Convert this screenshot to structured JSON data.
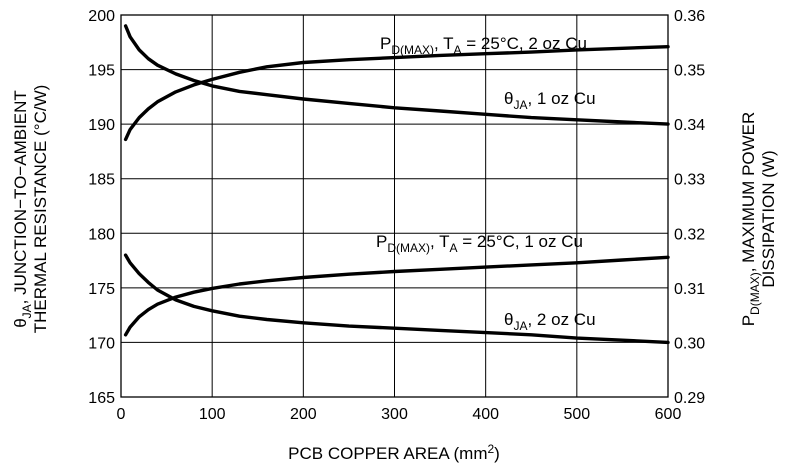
{
  "chart_data": {
    "type": "line",
    "xlabel": "PCB COPPER AREA (mm",
    "xlabel_sup": "2",
    "xlabel_end": ")",
    "x_ticks": [
      "0",
      "100",
      "200",
      "300",
      "400",
      "500",
      "600"
    ],
    "xlim": [
      0,
      600
    ],
    "ylim_left": [
      165,
      200
    ],
    "ylim_right": [
      0.29,
      0.36
    ],
    "left_ticks": [
      "165",
      "170",
      "175",
      "180",
      "185",
      "190",
      "195",
      "200"
    ],
    "right_ticks": [
      "0.29",
      "0.30",
      "0.31",
      "0.32",
      "0.33",
      "0.34",
      "0.35",
      "0.36"
    ],
    "ylabel_left_line1": {
      "theta": "θ",
      "sub": "JA",
      "rest": ", JUNCTION−TO−AMBIENT"
    },
    "ylabel_left_line2": "THERMAL RESISTANCE (°C/W)",
    "ylabel_right_line1": {
      "p": "P",
      "sub": "D(MAX)",
      "rest": ", MAXIMUM POWER"
    },
    "ylabel_right_line2": "DISSIPATION (W)",
    "grid": true,
    "series": [
      {
        "label": {
          "main": "P",
          "sub": "D(MAX)",
          "mid": ", T",
          "sub2": "A",
          "rest": " = 25°C, 2 oz Cu"
        },
        "axis": "right",
        "x": [
          5,
          10,
          20,
          30,
          40,
          60,
          80,
          100,
          130,
          160,
          200,
          250,
          300,
          350,
          400,
          450,
          500,
          550,
          600
        ],
        "y": [
          0.3372,
          0.339,
          0.3412,
          0.3428,
          0.3441,
          0.3459,
          0.3472,
          0.3482,
          0.3495,
          0.3505,
          0.3513,
          0.3518,
          0.3522,
          0.3526,
          0.3529,
          0.3532,
          0.3536,
          0.3539,
          0.3542
        ]
      },
      {
        "label": {
          "main": "θ",
          "sub": "JA",
          "rest": ", 1 oz Cu"
        },
        "axis": "left",
        "x": [
          5,
          10,
          20,
          30,
          40,
          60,
          80,
          100,
          130,
          160,
          200,
          250,
          300,
          350,
          400,
          450,
          500,
          550,
          600
        ],
        "y": [
          199.0,
          198.0,
          196.8,
          196.0,
          195.4,
          194.6,
          194.0,
          193.5,
          193.0,
          192.7,
          192.3,
          191.9,
          191.5,
          191.2,
          190.9,
          190.6,
          190.4,
          190.2,
          190.0
        ]
      },
      {
        "label": {
          "main": "P",
          "sub": "D(MAX)",
          "mid": ", T",
          "sub2": "A",
          "rest": " = 25°C, 1 oz Cu"
        },
        "axis": "right",
        "x": [
          5,
          10,
          20,
          30,
          40,
          60,
          80,
          100,
          130,
          160,
          200,
          250,
          300,
          350,
          400,
          450,
          500,
          550,
          600
        ],
        "y": [
          0.3014,
          0.3028,
          0.3047,
          0.306,
          0.307,
          0.3083,
          0.3092,
          0.3099,
          0.3107,
          0.3113,
          0.3119,
          0.3125,
          0.313,
          0.3134,
          0.3138,
          0.3142,
          0.3146,
          0.3151,
          0.3156
        ]
      },
      {
        "label": {
          "main": "θ",
          "sub": "JA",
          "rest": ", 2 oz Cu"
        },
        "axis": "left",
        "x": [
          5,
          10,
          20,
          30,
          40,
          60,
          80,
          100,
          130,
          160,
          200,
          250,
          300,
          350,
          400,
          450,
          500,
          550,
          600
        ],
        "y": [
          178.0,
          177.3,
          176.3,
          175.5,
          174.8,
          173.9,
          173.3,
          172.9,
          172.4,
          172.1,
          171.8,
          171.5,
          171.3,
          171.1,
          170.9,
          170.7,
          170.4,
          170.2,
          170.0
        ]
      }
    ]
  }
}
